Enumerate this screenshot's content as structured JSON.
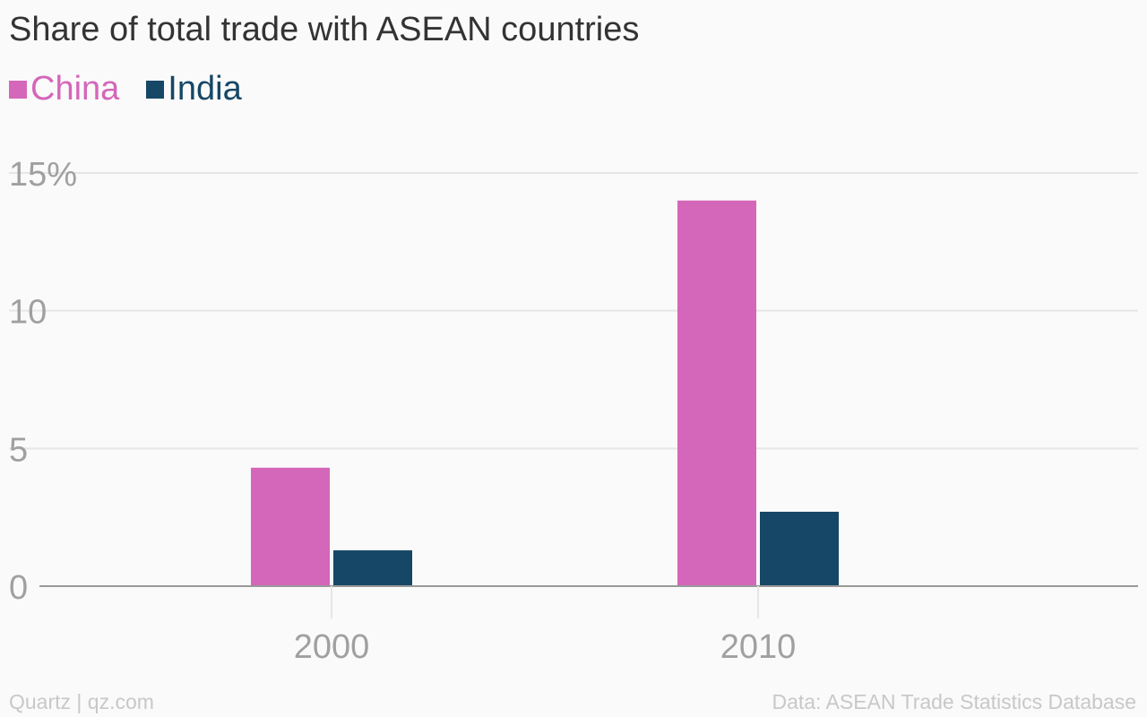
{
  "title": "Share of total trade with ASEAN countries",
  "footer": {
    "source_credit": "Quartz | qz.com",
    "data_credit": "Data: ASEAN Trade Statistics Database"
  },
  "colors": {
    "china": "#d467b9",
    "india": "#164766",
    "grid": "#e6e6e6",
    "axis": "#999999",
    "tick_label": "#a0a0a0"
  },
  "chart_data": {
    "type": "bar",
    "title": "Share of total trade with ASEAN countries",
    "categories": [
      "2000",
      "2010"
    ],
    "series": [
      {
        "name": "China",
        "values": [
          4.3,
          14.0
        ]
      },
      {
        "name": "India",
        "values": [
          1.3,
          2.7
        ]
      }
    ],
    "ylim": [
      0,
      15
    ],
    "yticks": [
      0,
      5,
      10,
      15
    ],
    "ytick_labels": [
      "0",
      "5",
      "10",
      "15%"
    ],
    "xlabel": "",
    "ylabel": "",
    "grid": true,
    "legend_position": "top-left"
  }
}
